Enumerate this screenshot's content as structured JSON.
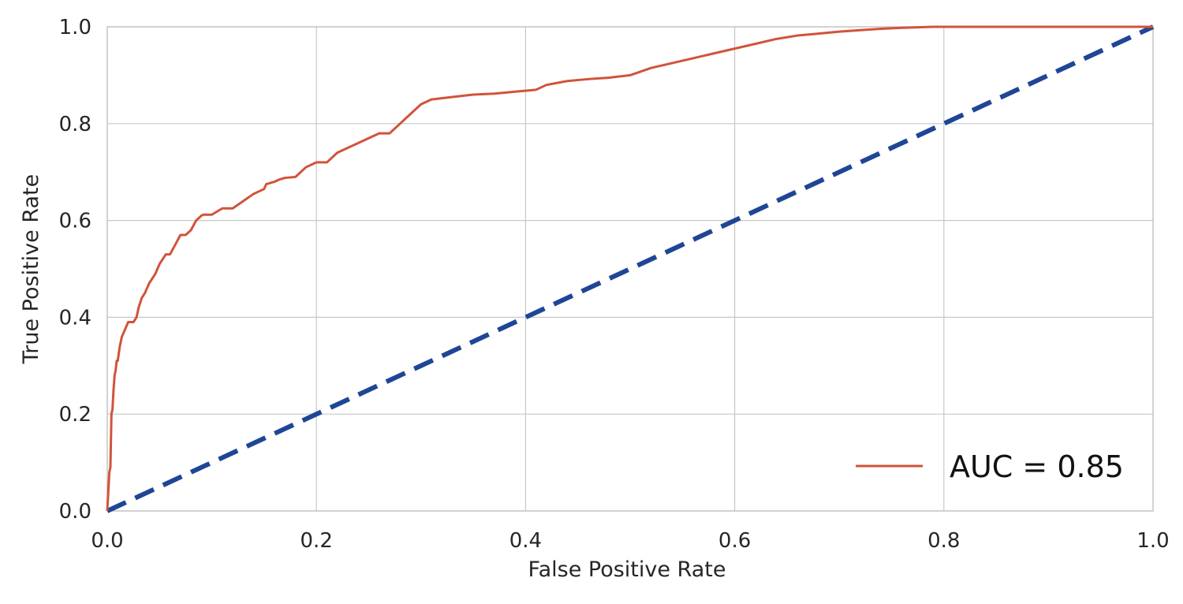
{
  "chart_data": {
    "type": "line",
    "xlabel": "False Positive Rate",
    "ylabel": "True Positive Rate",
    "xlim": [
      0.0,
      1.0
    ],
    "ylim": [
      0.0,
      1.0
    ],
    "xticks": [
      0.0,
      0.2,
      0.4,
      0.6,
      0.8,
      1.0
    ],
    "yticks": [
      0.0,
      0.2,
      0.4,
      0.6,
      0.8,
      1.0
    ],
    "xtick_labels": [
      "0.0",
      "0.2",
      "0.4",
      "0.6",
      "0.8",
      "1.0"
    ],
    "ytick_labels": [
      "0.0",
      "0.2",
      "0.4",
      "0.6",
      "0.8",
      "1.0"
    ],
    "grid": true,
    "legend_position": "bottom-right",
    "colors": {
      "roc": "#d2533a",
      "diagonal": "#1f4696"
    },
    "series": [
      {
        "name": "AUC = 0.85",
        "style": "solid",
        "x": [
          0.0,
          0.002,
          0.003,
          0.004,
          0.005,
          0.006,
          0.007,
          0.008,
          0.009,
          0.01,
          0.012,
          0.014,
          0.016,
          0.018,
          0.02,
          0.022,
          0.025,
          0.028,
          0.03,
          0.033,
          0.036,
          0.04,
          0.043,
          0.046,
          0.05,
          0.053,
          0.056,
          0.06,
          0.065,
          0.07,
          0.075,
          0.08,
          0.085,
          0.09,
          0.092,
          0.1,
          0.11,
          0.12,
          0.13,
          0.14,
          0.15,
          0.152,
          0.16,
          0.165,
          0.17,
          0.18,
          0.19,
          0.2,
          0.21,
          0.215,
          0.22,
          0.23,
          0.24,
          0.25,
          0.26,
          0.27,
          0.28,
          0.29,
          0.3,
          0.31,
          0.33,
          0.35,
          0.37,
          0.39,
          0.41,
          0.42,
          0.44,
          0.46,
          0.48,
          0.5,
          0.52,
          0.54,
          0.56,
          0.58,
          0.6,
          0.62,
          0.64,
          0.66,
          0.68,
          0.7,
          0.72,
          0.74,
          0.76,
          0.79,
          0.8,
          0.85,
          0.9,
          0.95,
          1.0
        ],
        "y": [
          0.0,
          0.08,
          0.09,
          0.2,
          0.21,
          0.25,
          0.28,
          0.29,
          0.31,
          0.31,
          0.34,
          0.36,
          0.37,
          0.38,
          0.39,
          0.39,
          0.39,
          0.4,
          0.42,
          0.44,
          0.45,
          0.47,
          0.48,
          0.49,
          0.51,
          0.52,
          0.53,
          0.53,
          0.55,
          0.57,
          0.57,
          0.58,
          0.6,
          0.61,
          0.612,
          0.612,
          0.625,
          0.625,
          0.64,
          0.655,
          0.665,
          0.675,
          0.68,
          0.685,
          0.688,
          0.69,
          0.71,
          0.72,
          0.72,
          0.73,
          0.74,
          0.75,
          0.76,
          0.77,
          0.78,
          0.78,
          0.8,
          0.82,
          0.84,
          0.85,
          0.855,
          0.86,
          0.862,
          0.866,
          0.87,
          0.88,
          0.888,
          0.892,
          0.895,
          0.9,
          0.915,
          0.925,
          0.935,
          0.945,
          0.955,
          0.965,
          0.975,
          0.982,
          0.986,
          0.99,
          0.993,
          0.996,
          0.998,
          1.0,
          1.0,
          1.0,
          1.0,
          1.0,
          1.0
        ]
      },
      {
        "name": "",
        "style": "dashed",
        "x": [
          0.0,
          1.0
        ],
        "y": [
          0.0,
          1.0
        ]
      }
    ]
  }
}
